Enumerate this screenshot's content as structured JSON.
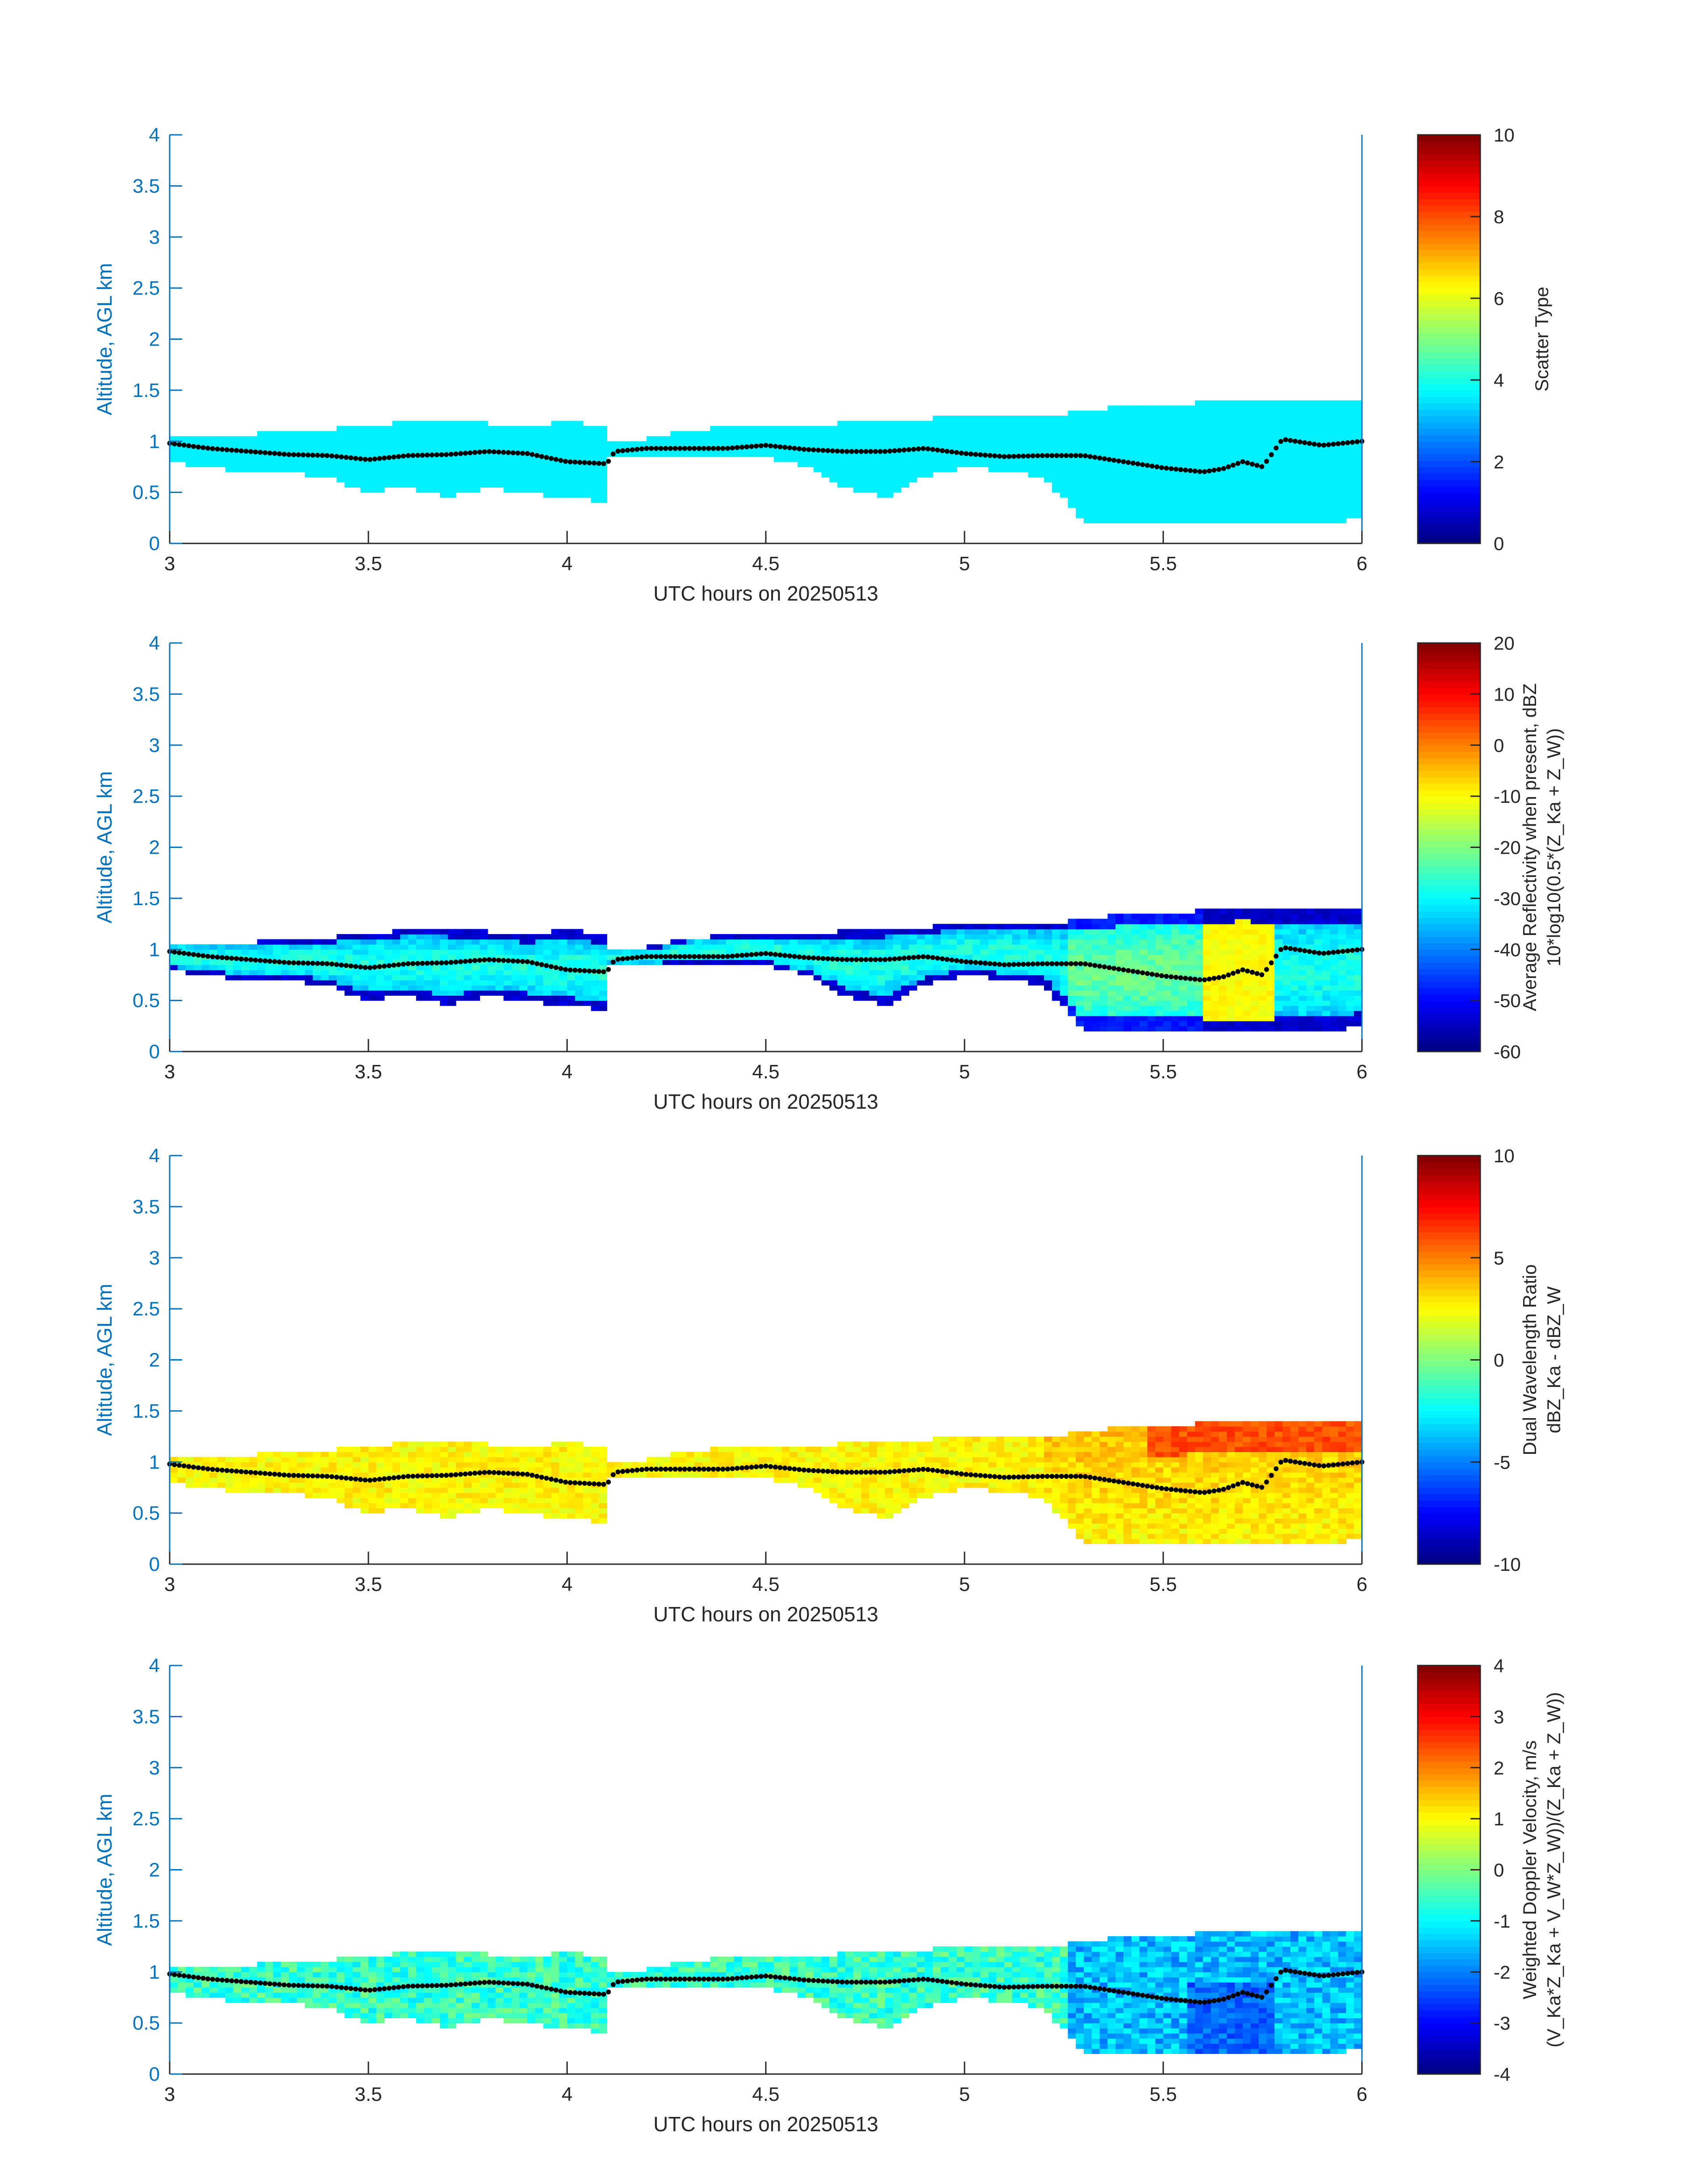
{
  "figure": {
    "charts": [
      {
        "id": "scatter-type",
        "type": "heatmap",
        "xlabel": "UTC hours on 20250513",
        "ylabel": "Altitude, AGL km",
        "xlim": [
          3,
          6
        ],
        "ylim": [
          0,
          4
        ],
        "x_ticks": [
          "3",
          "3.5",
          "4",
          "4.5",
          "5",
          "5.5",
          "6"
        ],
        "y_ticks": [
          "0",
          "0.5",
          "1",
          "1.5",
          "2",
          "2.5",
          "3",
          "3.5",
          "4"
        ],
        "colorbar": {
          "label_lines": [
            "Scatter Type"
          ],
          "range": [
            0,
            10
          ],
          "ticks": [
            "0",
            "2",
            "4",
            "6",
            "8",
            "10"
          ]
        },
        "field": "scatter"
      },
      {
        "id": "reflectivity",
        "type": "heatmap",
        "xlabel": "UTC hours on 20250513",
        "ylabel": "Altitude, AGL km",
        "xlim": [
          3,
          6
        ],
        "ylim": [
          0,
          4
        ],
        "x_ticks": [
          "3",
          "3.5",
          "4",
          "4.5",
          "5",
          "5.5",
          "6"
        ],
        "y_ticks": [
          "0",
          "0.5",
          "1",
          "1.5",
          "2",
          "2.5",
          "3",
          "3.5",
          "4"
        ],
        "colorbar": {
          "label_lines": [
            "Average Reflectivity when present, dBZ",
            "10*log10(0.5*(Z_Ka + Z_W))"
          ],
          "range": [
            -60,
            20
          ],
          "ticks": [
            "-60",
            "-50",
            "-40",
            "-30",
            "-20",
            "-10",
            "0",
            "10",
            "20"
          ]
        },
        "field": "reflectivity"
      },
      {
        "id": "dwr",
        "type": "heatmap",
        "xlabel": "UTC hours on 20250513",
        "ylabel": "Altitude, AGL km",
        "xlim": [
          3,
          6
        ],
        "ylim": [
          0,
          4
        ],
        "x_ticks": [
          "3",
          "3.5",
          "4",
          "4.5",
          "5",
          "5.5",
          "6"
        ],
        "y_ticks": [
          "0",
          "0.5",
          "1",
          "1.5",
          "2",
          "2.5",
          "3",
          "3.5",
          "4"
        ],
        "colorbar": {
          "label_lines": [
            "Dual Wavelength Ratio",
            "dBZ_Ka - dBZ_W"
          ],
          "range": [
            -10,
            10
          ],
          "ticks": [
            "-10",
            "-5",
            "0",
            "5",
            "10"
          ]
        },
        "field": "dwr"
      },
      {
        "id": "doppler",
        "type": "heatmap",
        "xlabel": "UTC hours on 20250513",
        "ylabel": "Altitude, AGL km",
        "xlim": [
          3,
          6
        ],
        "ylim": [
          0,
          4
        ],
        "x_ticks": [
          "3",
          "3.5",
          "4",
          "4.5",
          "5",
          "5.5",
          "6"
        ],
        "y_ticks": [
          "0",
          "0.5",
          "1",
          "1.5",
          "2",
          "2.5",
          "3",
          "3.5",
          "4"
        ],
        "colorbar": {
          "label_lines": [
            "Weighted Doppler Velocity, m/s",
            "(V_Ka*Z_Ka + V_W*Z_W))/(Z_Ka + Z_W))"
          ],
          "range": [
            -4,
            4
          ],
          "ticks": [
            "-4",
            "-3",
            "-2",
            "-1",
            "0",
            "1",
            "2",
            "3",
            "4"
          ]
        },
        "field": "velocity"
      }
    ],
    "colors": {
      "axis": "#0072BD",
      "text": "#262626",
      "cloud_base_dots": "#000000"
    }
  },
  "chart_data": {
    "type": "heatmap",
    "description_x_units": "UTC hours",
    "description_y_units": "km",
    "cloud_profile": {
      "x": [
        3.0,
        3.1,
        3.2,
        3.3,
        3.4,
        3.5,
        3.6,
        3.7,
        3.8,
        3.9,
        4.0,
        4.1,
        4.11,
        4.2,
        4.3,
        4.4,
        4.5,
        4.6,
        4.7,
        4.8,
        4.9,
        5.0,
        5.1,
        5.2,
        5.3,
        5.4,
        5.5,
        5.6,
        5.7,
        5.8,
        5.9,
        6.0
      ],
      "top_km": [
        1.07,
        1.07,
        1.07,
        1.1,
        1.12,
        1.15,
        1.2,
        1.2,
        1.18,
        1.12,
        1.2,
        1.12,
        1.02,
        1.02,
        1.1,
        1.15,
        1.15,
        1.15,
        1.18,
        1.2,
        1.22,
        1.25,
        1.25,
        1.25,
        1.3,
        1.35,
        1.35,
        1.38,
        1.4,
        1.38,
        1.38,
        1.38
      ],
      "base_km": [
        0.8,
        0.75,
        0.7,
        0.7,
        0.65,
        0.5,
        0.55,
        0.45,
        0.55,
        0.5,
        0.45,
        0.4,
        0.85,
        0.85,
        0.85,
        0.85,
        0.85,
        0.75,
        0.55,
        0.45,
        0.65,
        0.75,
        0.7,
        0.65,
        0.2,
        0.2,
        0.2,
        0.2,
        0.2,
        0.2,
        0.2,
        0.25
      ]
    },
    "cloud_base_dots": {
      "x": [
        3.0,
        3.1,
        3.2,
        3.3,
        3.4,
        3.5,
        3.6,
        3.7,
        3.8,
        3.9,
        4.0,
        4.1,
        4.12,
        4.2,
        4.3,
        4.4,
        4.5,
        4.6,
        4.7,
        4.8,
        4.9,
        5.0,
        5.1,
        5.2,
        5.3,
        5.4,
        5.5,
        5.6,
        5.65,
        5.7,
        5.75,
        5.8,
        5.9,
        6.0
      ],
      "y": [
        0.98,
        0.93,
        0.9,
        0.87,
        0.86,
        0.82,
        0.86,
        0.87,
        0.9,
        0.88,
        0.8,
        0.78,
        0.9,
        0.93,
        0.93,
        0.93,
        0.96,
        0.92,
        0.9,
        0.9,
        0.93,
        0.88,
        0.85,
        0.86,
        0.86,
        0.8,
        0.74,
        0.7,
        0.73,
        0.8,
        0.75,
        1.02,
        0.96,
        1.0
      ]
    }
  }
}
